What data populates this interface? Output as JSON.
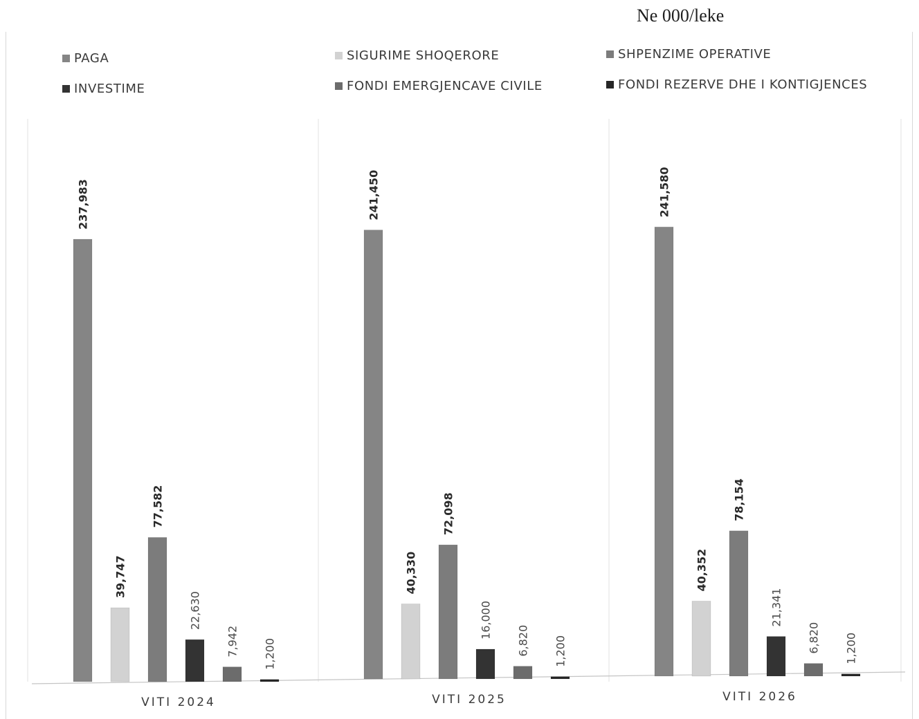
{
  "unit_label": "Ne 000/leke",
  "colors": {
    "PAGA": "#858585",
    "SIGURIME SHOQERORE": "#d2d2d2",
    "SHPENZIME OPERATIVE": "#7c7c7c",
    "INVESTIME": "#333333",
    "FONDI EMERGJENCAVE CIVILE": "#6c6c6c",
    "FONDI REZERVE DHE I KONTIGJENCES": "#262626"
  },
  "chart_data": {
    "type": "bar",
    "title": "",
    "xlabel": "",
    "ylabel": "",
    "categories": [
      "VITI 2024",
      "VITI 2025",
      "VITI 2026"
    ],
    "series": [
      {
        "name": "PAGA",
        "values": [
          237983,
          241450,
          241580
        ]
      },
      {
        "name": "SIGURIME SHOQERORE",
        "values": [
          39747,
          40330,
          40352
        ]
      },
      {
        "name": "SHPENZIME OPERATIVE",
        "values": [
          77582,
          72098,
          78154
        ]
      },
      {
        "name": "INVESTIME",
        "values": [
          22630,
          16000,
          21341
        ]
      },
      {
        "name": "FONDI EMERGJENCAVE CIVILE",
        "values": [
          7942,
          6820,
          6820
        ]
      },
      {
        "name": "FONDI REZERVE DHE I KONTIGJENCES",
        "values": [
          1200,
          1200,
          1200
        ]
      }
    ],
    "data_labels": [
      [
        "237,983",
        "39,747",
        "77,582",
        "22,630",
        "7,942",
        "1,200"
      ],
      [
        "241,450",
        "40,330",
        "72,098",
        "16,000",
        "6,820",
        "1,200"
      ],
      [
        "241,580",
        "40,352",
        "78,154",
        "21,341",
        "6,820",
        "1,200"
      ]
    ],
    "ylim": [
      0,
      300000
    ],
    "grid": false,
    "legend_position": "top"
  }
}
